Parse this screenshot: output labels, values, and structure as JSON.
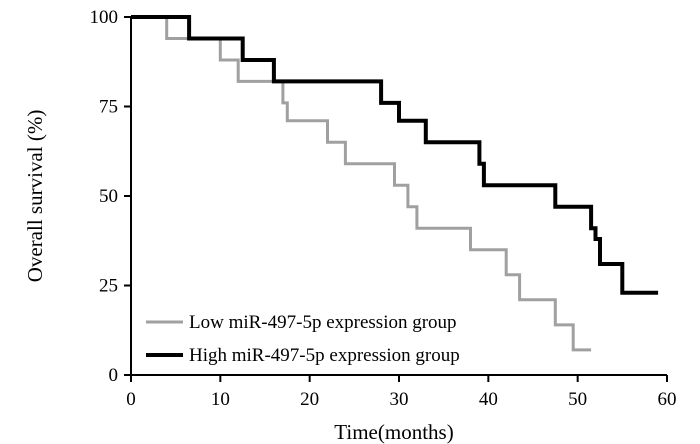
{
  "chart_data": {
    "type": "line",
    "subtype": "kaplan-meier-step",
    "title": "",
    "xlabel": "Time(months)",
    "ylabel": "Overall survival (%)",
    "xlim": [
      0,
      60
    ],
    "ylim": [
      0,
      100
    ],
    "xticks": [
      0,
      10,
      20,
      30,
      40,
      50,
      60
    ],
    "yticks": [
      0,
      25,
      50,
      75,
      100
    ],
    "grid": false,
    "legend_position": "bottom-left",
    "series": [
      {
        "name": "Low miR-497-5p expression group",
        "color": "#a0a0a0",
        "x": [
          0,
          4,
          6,
          10,
          12,
          17,
          17.5,
          22,
          24,
          29.5,
          31,
          32,
          38,
          42,
          43.5,
          47.5,
          49.5,
          51.5
        ],
        "y": [
          100,
          94,
          94,
          88,
          82,
          76,
          71,
          65,
          59,
          53,
          47,
          41,
          35,
          28,
          21,
          14,
          7,
          7
        ]
      },
      {
        "name": "High miR-497-5p expression group",
        "color": "#000000",
        "x": [
          0,
          6.5,
          12.5,
          16,
          28,
          30,
          33,
          39,
          39.5,
          47.5,
          51.5,
          52,
          52.5,
          55,
          59
        ],
        "y": [
          100,
          94,
          88,
          82,
          76,
          71,
          65,
          59,
          53,
          47,
          41,
          38,
          31,
          23,
          23
        ]
      }
    ]
  }
}
